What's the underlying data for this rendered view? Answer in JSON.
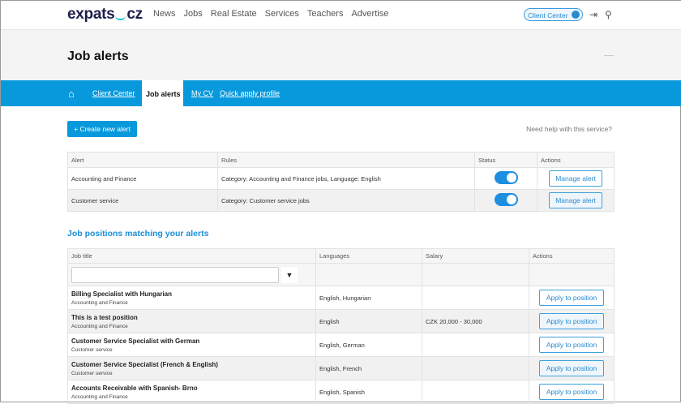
{
  "header": {
    "logo": "expats.cz",
    "logo_left": "expats",
    "logo_right": "cz",
    "nav": [
      "News",
      "Jobs",
      "Real Estate",
      "Services",
      "Teachers",
      "Advertise"
    ],
    "client_center": "Client Center",
    "icons": [
      "user-icon",
      "logout-icon",
      "search-icon"
    ]
  },
  "page": {
    "title": "Job alerts"
  },
  "subnav": {
    "items": [
      "Client Center",
      "Job alerts",
      "My CV",
      "Quick apply profile"
    ],
    "active": "Job alerts"
  },
  "actions": {
    "create": "+ Create new alert",
    "help": "Need help with this service?"
  },
  "alerts": {
    "columns": [
      "Alert",
      "Rules",
      "Status",
      "Actions"
    ],
    "rows": [
      {
        "alert": "Accounting and Finance",
        "rules": "Category: Accounting and Finance jobs, Language: English",
        "status": true,
        "action": "Manage alert"
      },
      {
        "alert": "Customer service",
        "rules": "Category: Customer service jobs",
        "status": true,
        "action": "Manage alert"
      }
    ]
  },
  "positions": {
    "heading": "Job positions matching your alerts",
    "columns": [
      "Job title",
      "Languages",
      "Salary",
      "Actions"
    ],
    "filter_placeholder": "",
    "rows": [
      {
        "title": "Billing Specialist with Hungarian",
        "category": "Accounting and Finance",
        "languages": "English, Hungarian",
        "salary": "",
        "action": "Apply to position"
      },
      {
        "title": "This is a test position",
        "category": "Accounting and Finance",
        "languages": "English",
        "salary": "CZK 20,000 - 30,000",
        "action": "Apply to position"
      },
      {
        "title": "Customer Service Specialist with German",
        "category": "Customer service",
        "languages": "English, German",
        "salary": "",
        "action": "Apply to position"
      },
      {
        "title": "Customer Service Specialist (French & English)",
        "category": "Customer service",
        "languages": "English, French",
        "salary": "",
        "action": "Apply to position"
      },
      {
        "title": "Accounts Receivable with Spanish- Brno",
        "category": "Accounting and Finance",
        "languages": "English, Spanish",
        "salary": "",
        "action": "Apply to position"
      }
    ]
  },
  "colors": {
    "brand": "#0899dc",
    "logo": "#1d1f4e",
    "accent": "#1fc3c9"
  }
}
